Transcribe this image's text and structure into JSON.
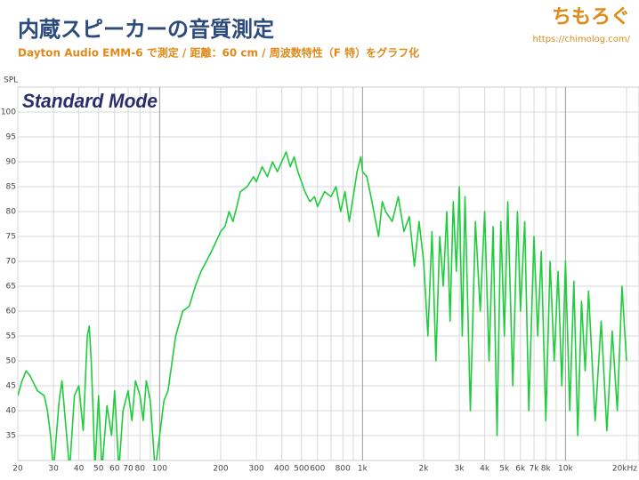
{
  "header": {
    "logo": "ちもろぐ",
    "url": "https://chimolog.com/"
  },
  "chart_data": {
    "type": "line",
    "title": "内蔵スピーカーの音質測定",
    "subtitle": "Dayton Audio EMM-6 で測定 / 距離：60 cm / 周波数特性（F 特）をグラフ化",
    "annotation": "Standard Mode",
    "ylabel": "SPL",
    "color": "#1fcc3c",
    "xscale": "log",
    "grid": true,
    "xlim": [
      20,
      20000
    ],
    "ylim": [
      30,
      105
    ],
    "yticks": [
      35,
      40,
      45,
      50,
      55,
      60,
      65,
      70,
      75,
      80,
      85,
      90,
      95,
      100
    ],
    "xticks": [
      20,
      30,
      40,
      50,
      60,
      70,
      80,
      100,
      200,
      300,
      400,
      500,
      600,
      800,
      {
        "value": 1000,
        "label": "1k"
      },
      {
        "value": 2000,
        "label": "2k"
      },
      {
        "value": 3000,
        "label": "3k"
      },
      {
        "value": 4000,
        "label": "4k"
      },
      {
        "value": 5000,
        "label": "5k"
      },
      {
        "value": 6000,
        "label": "6k"
      },
      {
        "value": 7000,
        "label": "7k"
      },
      {
        "value": 8000,
        "label": "8k"
      },
      {
        "value": 10000,
        "label": "10k"
      },
      {
        "value": 20000,
        "label": "20kHz"
      }
    ],
    "xminor_ticks": [
      90,
      700,
      900,
      9000
    ],
    "x": [
      20,
      21,
      22,
      23,
      25,
      27,
      28,
      29,
      30,
      32,
      33,
      34,
      36,
      38,
      40,
      42,
      44,
      45,
      46,
      47,
      48,
      50,
      52,
      55,
      58,
      60,
      63,
      66,
      70,
      73,
      76,
      80,
      83,
      86,
      90,
      95,
      100,
      105,
      110,
      120,
      130,
      140,
      150,
      160,
      170,
      180,
      190,
      200,
      210,
      220,
      230,
      240,
      250,
      270,
      290,
      300,
      320,
      340,
      360,
      380,
      400,
      420,
      440,
      460,
      480,
      500,
      520,
      550,
      580,
      600,
      650,
      700,
      740,
      780,
      820,
      860,
      900,
      940,
      980,
      1000,
      1050,
      1100,
      1200,
      1250,
      1300,
      1400,
      1500,
      1600,
      1700,
      1800,
      1900,
      2000,
      2100,
      2200,
      2300,
      2400,
      2500,
      2600,
      2700,
      2800,
      2900,
      3000,
      3100,
      3200,
      3400,
      3600,
      3800,
      4000,
      4200,
      4400,
      4600,
      4800,
      5000,
      5200,
      5500,
      5800,
      6000,
      6300,
      6600,
      7000,
      7300,
      7600,
      8000,
      8400,
      8800,
      9200,
      9600,
      10000,
      10500,
      11000,
      11500,
      12000,
      12500,
      13000,
      14000,
      15000,
      16000,
      17000,
      18000,
      19000,
      20000
    ],
    "values": [
      43,
      46,
      48,
      47,
      44,
      43,
      40,
      35,
      28,
      42,
      46,
      40,
      28,
      43,
      45,
      36,
      55,
      57,
      50,
      40,
      28,
      43,
      28,
      41,
      35,
      44,
      28,
      40,
      44,
      38,
      46,
      43,
      38,
      46,
      42,
      28,
      35,
      42,
      44,
      55,
      60,
      61,
      65,
      68,
      70,
      72,
      74,
      76,
      77,
      80,
      78,
      81,
      84,
      85,
      87,
      86,
      89,
      87,
      90,
      88,
      90,
      92,
      89,
      91,
      88,
      86,
      84,
      82,
      83,
      81,
      84,
      83,
      85,
      80,
      84,
      78,
      83,
      88,
      91,
      88,
      87,
      83,
      75,
      82,
      80,
      78,
      83,
      76,
      79,
      69,
      78,
      70,
      55,
      76,
      50,
      75,
      65,
      80,
      58,
      82,
      68,
      85,
      55,
      83,
      40,
      78,
      60,
      80,
      50,
      77,
      35,
      78,
      55,
      82,
      45,
      80,
      60,
      78,
      40,
      75,
      55,
      72,
      38,
      70,
      50,
      68,
      45,
      70,
      40,
      66,
      35,
      62,
      48,
      64,
      38,
      58,
      36,
      56,
      40,
      65,
      50
    ]
  }
}
